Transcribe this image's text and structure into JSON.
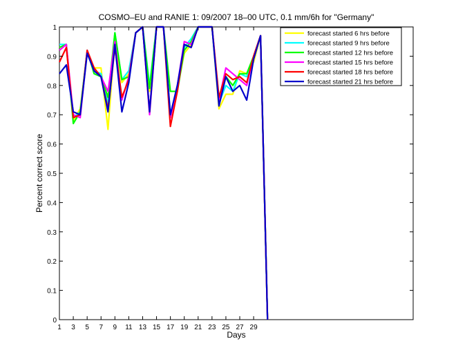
{
  "chart_data": {
    "type": "line",
    "title": "COSMO–EU and RANIE 1: 09/2007 18–00 UTC, 0.1 mm/6h for \"Germany\"",
    "xlabel": "Days",
    "ylabel": "Percent correct score",
    "xlim": [
      1,
      52
    ],
    "ylim": [
      0,
      1
    ],
    "x_ticks": [
      1,
      3,
      5,
      7,
      9,
      11,
      13,
      15,
      17,
      19,
      21,
      23,
      25,
      27,
      29
    ],
    "x_tick_labels": [
      "1",
      "3",
      "5",
      "7",
      "9",
      "11",
      "13",
      "15",
      "17",
      "19",
      "21",
      "23",
      "25",
      "27",
      "29"
    ],
    "y_ticks": [
      0,
      0.1,
      0.2,
      0.3,
      0.4,
      0.5,
      0.6,
      0.7,
      0.8,
      0.9,
      1
    ],
    "y_tick_labels": [
      "0",
      "0.1",
      "0.2",
      "0.3",
      "0.4",
      "0.5",
      "0.6",
      "0.7",
      "0.8",
      "0.9",
      "1"
    ],
    "grid": false,
    "legend_position": "top-right",
    "x": [
      1,
      2,
      3,
      4,
      5,
      6,
      7,
      8,
      9,
      10,
      11,
      12,
      13,
      14,
      15,
      16,
      17,
      18,
      19,
      20,
      21,
      22,
      23,
      24,
      25,
      26,
      27,
      28,
      29,
      30,
      31
    ],
    "series": [
      {
        "name": "forecast started 6 hrs before",
        "color": "#ffff00",
        "values": [
          0.93,
          0.94,
          0.68,
          0.72,
          0.91,
          0.86,
          0.86,
          0.65,
          0.96,
          0.81,
          0.84,
          0.98,
          1,
          0.78,
          1,
          1,
          0.69,
          0.79,
          0.91,
          0.94,
          1,
          1,
          1,
          0.72,
          0.77,
          0.77,
          0.85,
          0.84,
          0.88,
          0.97,
          0
        ]
      },
      {
        "name": "forecast started 9 hrs before",
        "color": "#00ffff",
        "values": [
          0.94,
          0.94,
          0.69,
          0.71,
          0.92,
          0.85,
          0.84,
          0.74,
          0.98,
          0.82,
          0.85,
          0.98,
          1,
          0.8,
          1,
          1,
          0.7,
          0.8,
          0.93,
          0.96,
          1,
          1,
          1,
          0.74,
          0.8,
          0.78,
          0.84,
          0.83,
          0.9,
          0.97,
          0
        ]
      },
      {
        "name": "forecast started 12 hrs before",
        "color": "#00ff00",
        "values": [
          0.93,
          0.94,
          0.67,
          0.71,
          0.92,
          0.84,
          0.83,
          0.76,
          0.98,
          0.82,
          0.83,
          0.98,
          1,
          0.79,
          1,
          1,
          0.78,
          0.78,
          0.92,
          0.95,
          1,
          1,
          1,
          0.74,
          0.83,
          0.8,
          0.84,
          0.84,
          0.9,
          0.97,
          0
        ]
      },
      {
        "name": "forecast started 15 hrs before",
        "color": "#ff00ff",
        "values": [
          0.92,
          0.94,
          0.7,
          0.69,
          0.92,
          0.85,
          0.83,
          0.78,
          0.95,
          0.75,
          0.83,
          0.98,
          1,
          0.7,
          1,
          1,
          0.69,
          0.8,
          0.95,
          0.94,
          1,
          1,
          1,
          0.75,
          0.86,
          0.84,
          0.82,
          0.8,
          0.9,
          0.97,
          0
        ]
      },
      {
        "name": "forecast started 18 hrs before",
        "color": "#ff0000",
        "values": [
          0.88,
          0.93,
          0.69,
          0.7,
          0.92,
          0.86,
          0.83,
          0.72,
          0.93,
          0.76,
          0.82,
          0.98,
          1,
          0.71,
          1,
          1,
          0.66,
          0.78,
          0.94,
          0.93,
          1,
          1,
          1,
          0.76,
          0.84,
          0.82,
          0.83,
          0.81,
          0.9,
          0.97,
          0
        ]
      },
      {
        "name": "forecast started 21 hrs before",
        "color": "#0000cc",
        "values": [
          0.84,
          0.87,
          0.71,
          0.7,
          0.91,
          0.85,
          0.83,
          0.71,
          0.94,
          0.71,
          0.81,
          0.98,
          1,
          0.71,
          1,
          1,
          0.7,
          0.8,
          0.94,
          0.93,
          1,
          1,
          1,
          0.73,
          0.83,
          0.78,
          0.8,
          0.75,
          0.89,
          0.97,
          0
        ]
      }
    ]
  }
}
